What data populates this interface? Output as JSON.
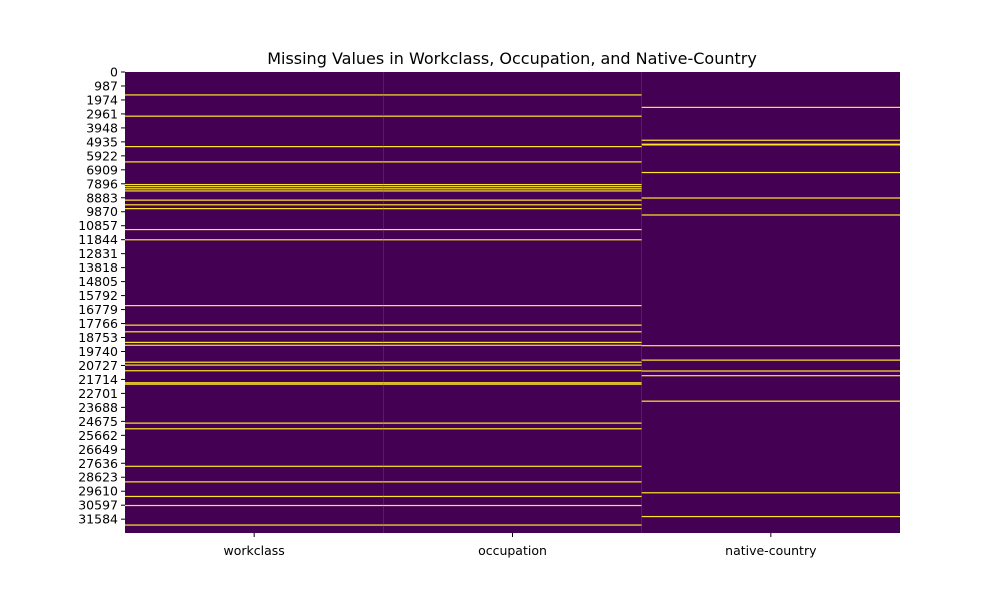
{
  "chart_data": {
    "type": "heatmap",
    "title": "Missing Values in Workclass, Occupation, and Native-Country",
    "columns": [
      "workclass",
      "occupation",
      "native-country"
    ],
    "y_range": [
      0,
      32561
    ],
    "y_tick_labels": [
      0,
      987,
      1974,
      2961,
      3948,
      4935,
      5922,
      6909,
      7896,
      8883,
      9870,
      10857,
      11844,
      12831,
      13818,
      14805,
      15792,
      16779,
      17766,
      18753,
      19740,
      20727,
      21714,
      22701,
      23688,
      24675,
      25662,
      26649,
      27636,
      28623,
      29610,
      30597,
      31584
    ],
    "colormap": {
      "present": "#440154",
      "missing": "#fde725"
    },
    "missing_rows": {
      "workclass": [
        1620,
        3120,
        5270,
        6350,
        7950,
        8100,
        8250,
        8400,
        9050,
        9380,
        9650,
        11130,
        11850,
        16500,
        17880,
        18350,
        19100,
        19300,
        20500,
        20700,
        21100,
        21950,
        22050,
        24800,
        25200,
        27850,
        28950,
        29980,
        30620,
        32000
      ],
      "occupation": [
        1620,
        3120,
        5270,
        6350,
        7950,
        8100,
        8250,
        8400,
        9050,
        9380,
        9650,
        11130,
        11850,
        16500,
        17880,
        18350,
        19100,
        19300,
        20500,
        20700,
        21100,
        21950,
        22050,
        24800,
        25200,
        27850,
        28950,
        29980,
        30620,
        32000
      ],
      "native-country": [
        2500,
        4820,
        5100,
        5150,
        7100,
        8900,
        10100,
        19330,
        20350,
        21120,
        21450,
        23250,
        29720,
        31400
      ]
    }
  }
}
